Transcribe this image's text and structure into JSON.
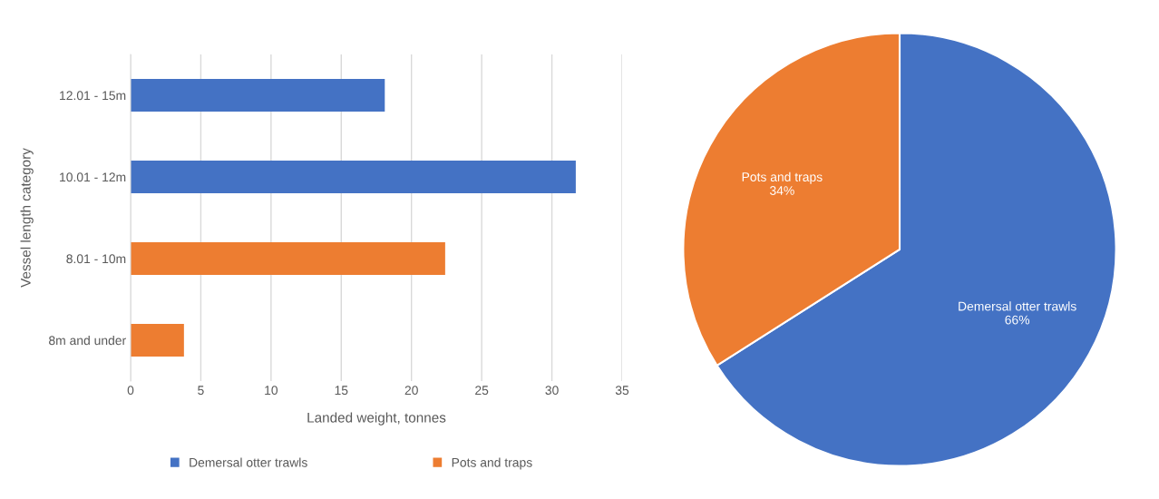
{
  "chart_data": [
    {
      "type": "bar",
      "orientation": "horizontal",
      "stacked": true,
      "ylabel": "Vessel length category",
      "xlabel": "Landed weight, tonnes",
      "categories": [
        "12.01 - 15m",
        "10.01 - 12m",
        "8.01 - 10m",
        "8m and under"
      ],
      "series": [
        {
          "name": "Demersal otter trawls",
          "color": "#4472c4",
          "values": [
            18.1,
            31.7,
            null,
            null
          ]
        },
        {
          "name": "Pots and traps",
          "color": "#ed7d31",
          "values": [
            null,
            null,
            22.4,
            3.8
          ]
        }
      ],
      "xlim": [
        0,
        35
      ],
      "xticks": [
        0,
        5,
        10,
        15,
        20,
        25,
        30,
        35
      ],
      "grid": "x",
      "legend": "bottom"
    },
    {
      "type": "pie",
      "categories": [
        "Demersal otter trawls",
        "Pots and traps"
      ],
      "values": [
        66,
        34
      ],
      "colors": [
        "#4472c4",
        "#ed7d31"
      ],
      "value_labels": [
        "66%",
        "34%"
      ]
    }
  ]
}
